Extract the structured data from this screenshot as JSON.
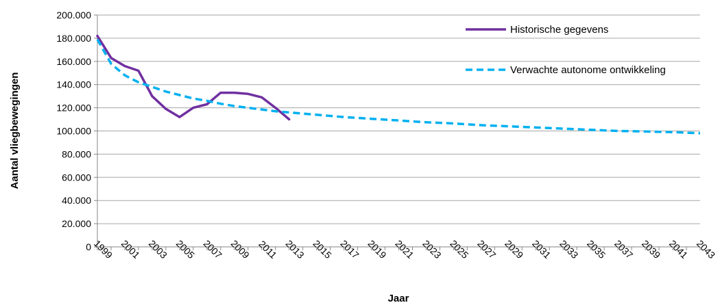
{
  "chart_data": {
    "type": "line",
    "xlabel": "Jaar",
    "ylabel": "Aantal vliegbewegingen",
    "ylim": [
      0,
      200000
    ],
    "xlim": [
      1999,
      2043
    ],
    "yticks": [
      "0",
      "20.000",
      "40.000",
      "60.000",
      "80.000",
      "100.000",
      "120.000",
      "140.000",
      "160.000",
      "180.000",
      "200.000"
    ],
    "xticks": [
      "1999",
      "2001",
      "2003",
      "2005",
      "2007",
      "2009",
      "2011",
      "2013",
      "2015",
      "2017",
      "2019",
      "2021",
      "2023",
      "2025",
      "2027",
      "2029",
      "2031",
      "2033",
      "2035",
      "2037",
      "2039",
      "2041",
      "2043"
    ],
    "grid": "horizontal",
    "legend_position": "top-right",
    "series": [
      {
        "name": "Historische gegevens",
        "color": "#7030A0",
        "style": "solid",
        "x": [
          1999,
          2000,
          2001,
          2002,
          2003,
          2004,
          2005,
          2006,
          2007,
          2008,
          2009,
          2010,
          2011,
          2012,
          2013
        ],
        "y": [
          182000,
          163000,
          156000,
          152000,
          130000,
          119000,
          112000,
          120000,
          123000,
          133000,
          133000,
          132000,
          129000,
          120000,
          110000
        ]
      },
      {
        "name": "Verwachte autonome ontwikkeling",
        "color": "#00B0F0",
        "style": "dashed",
        "x": [
          1999,
          2000,
          2001,
          2002,
          2003,
          2004,
          2005,
          2006,
          2007,
          2008,
          2009,
          2010,
          2011,
          2012,
          2013,
          2015,
          2017,
          2019,
          2021,
          2023,
          2025,
          2027,
          2029,
          2031,
          2033,
          2035,
          2037,
          2039,
          2041,
          2043
        ],
        "y": [
          179000,
          158000,
          148000,
          142000,
          138000,
          134000,
          131000,
          128000,
          126000,
          123500,
          121500,
          120000,
          118500,
          117000,
          116000,
          114000,
          112000,
          110500,
          109000,
          107500,
          106500,
          105000,
          104000,
          103000,
          102000,
          101000,
          100000,
          99500,
          99000,
          98000
        ]
      }
    ]
  }
}
